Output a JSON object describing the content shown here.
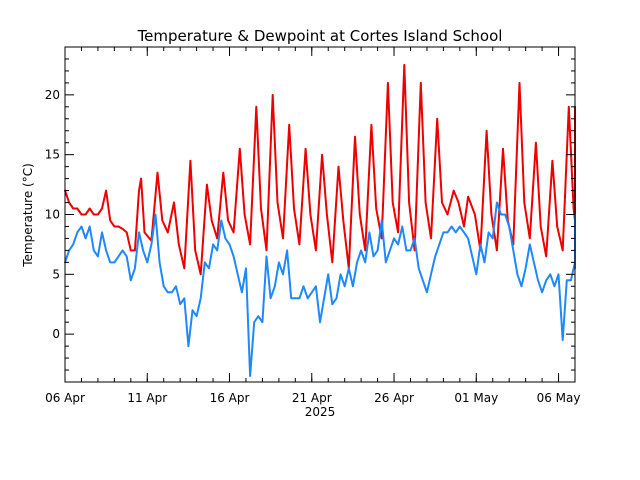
{
  "chart_data": {
    "type": "line",
    "title": "Temperature & Dewpoint at Cortes Island School",
    "ylabel": "Temperature (°C)",
    "xlabel": "2025",
    "x_range": [
      "2025-04-06",
      "2025-05-07"
    ],
    "ylim": [
      -4,
      24
    ],
    "y_ticks": [
      0,
      5,
      10,
      15,
      20
    ],
    "x_tick_labels": [
      "06 Apr",
      "11 Apr",
      "16 Apr",
      "21 Apr",
      "26 Apr",
      "01 May",
      "06 May"
    ],
    "x_tick_dates": [
      "2025-04-06",
      "2025-04-11",
      "2025-04-16",
      "2025-04-21",
      "2025-04-26",
      "2025-05-01",
      "2025-05-06"
    ],
    "grid": false,
    "series": [
      {
        "color": "#ee0000",
        "values": [
          [
            "2025-04-06 00:00",
            12.0
          ],
          [
            "2025-04-06 06:00",
            11.0
          ],
          [
            "2025-04-06 12:00",
            10.5
          ],
          [
            "2025-04-06 18:00",
            10.5
          ],
          [
            "2025-04-07 00:00",
            10.0
          ],
          [
            "2025-04-07 06:00",
            10.0
          ],
          [
            "2025-04-07 12:00",
            10.5
          ],
          [
            "2025-04-07 18:00",
            10.0
          ],
          [
            "2025-04-08 00:00",
            10.0
          ],
          [
            "2025-04-08 06:00",
            10.5
          ],
          [
            "2025-04-08 12:00",
            12.0
          ],
          [
            "2025-04-08 18:00",
            9.5
          ],
          [
            "2025-04-09 00:00",
            9.0
          ],
          [
            "2025-04-09 06:00",
            9.0
          ],
          [
            "2025-04-09 12:00",
            8.8
          ],
          [
            "2025-04-09 18:00",
            8.5
          ],
          [
            "2025-04-10 00:00",
            7.0
          ],
          [
            "2025-04-10 06:00",
            7.0
          ],
          [
            "2025-04-10 12:00",
            12.0
          ],
          [
            "2025-04-10 15:00",
            13.0
          ],
          [
            "2025-04-10 20:00",
            8.5
          ],
          [
            "2025-04-11 06:00",
            7.8
          ],
          [
            "2025-04-11 15:00",
            13.5
          ],
          [
            "2025-04-11 22:00",
            9.5
          ],
          [
            "2025-04-12 06:00",
            8.5
          ],
          [
            "2025-04-12 15:00",
            11.0
          ],
          [
            "2025-04-12 22:00",
            7.5
          ],
          [
            "2025-04-13 06:00",
            5.5
          ],
          [
            "2025-04-13 15:00",
            14.5
          ],
          [
            "2025-04-13 22:00",
            7.0
          ],
          [
            "2025-04-14 06:00",
            5.0
          ],
          [
            "2025-04-14 15:00",
            12.5
          ],
          [
            "2025-04-14 22:00",
            9.5
          ],
          [
            "2025-04-15 06:00",
            8.0
          ],
          [
            "2025-04-15 15:00",
            13.5
          ],
          [
            "2025-04-15 22:00",
            9.5
          ],
          [
            "2025-04-16 06:00",
            8.5
          ],
          [
            "2025-04-16 15:00",
            15.5
          ],
          [
            "2025-04-16 22:00",
            10.0
          ],
          [
            "2025-04-17 06:00",
            7.5
          ],
          [
            "2025-04-17 15:00",
            19.0
          ],
          [
            "2025-04-17 22:00",
            10.5
          ],
          [
            "2025-04-18 06:00",
            7.0
          ],
          [
            "2025-04-18 15:00",
            20.0
          ],
          [
            "2025-04-18 22:00",
            11.0
          ],
          [
            "2025-04-19 06:00",
            8.0
          ],
          [
            "2025-04-19 15:00",
            17.5
          ],
          [
            "2025-04-19 22:00",
            10.5
          ],
          [
            "2025-04-20 06:00",
            7.5
          ],
          [
            "2025-04-20 15:00",
            15.5
          ],
          [
            "2025-04-20 22:00",
            10.0
          ],
          [
            "2025-04-21 06:00",
            7.0
          ],
          [
            "2025-04-21 15:00",
            15.0
          ],
          [
            "2025-04-21 22:00",
            10.0
          ],
          [
            "2025-04-22 06:00",
            6.0
          ],
          [
            "2025-04-22 15:00",
            14.0
          ],
          [
            "2025-04-22 22:00",
            9.5
          ],
          [
            "2025-04-23 06:00",
            5.5
          ],
          [
            "2025-04-23 15:00",
            16.5
          ],
          [
            "2025-04-23 22:00",
            10.0
          ],
          [
            "2025-04-24 06:00",
            7.0
          ],
          [
            "2025-04-24 15:00",
            17.5
          ],
          [
            "2025-04-24 22:00",
            10.5
          ],
          [
            "2025-04-25 06:00",
            8.0
          ],
          [
            "2025-04-25 15:00",
            21.0
          ],
          [
            "2025-04-25 22:00",
            11.0
          ],
          [
            "2025-04-26 06:00",
            8.5
          ],
          [
            "2025-04-26 15:00",
            22.5
          ],
          [
            "2025-04-26 22:00",
            11.0
          ],
          [
            "2025-04-27 06:00",
            7.0
          ],
          [
            "2025-04-27 15:00",
            21.0
          ],
          [
            "2025-04-27 22:00",
            11.0
          ],
          [
            "2025-04-28 06:00",
            8.0
          ],
          [
            "2025-04-28 15:00",
            18.0
          ],
          [
            "2025-04-28 22:00",
            11.0
          ],
          [
            "2025-04-29 06:00",
            10.0
          ],
          [
            "2025-04-29 15:00",
            12.0
          ],
          [
            "2025-04-29 22:00",
            11.0
          ],
          [
            "2025-04-30 06:00",
            9.0
          ],
          [
            "2025-04-30 12:00",
            11.5
          ],
          [
            "2025-04-30 22:00",
            10.0
          ],
          [
            "2025-05-01 06:00",
            7.0
          ],
          [
            "2025-05-01 15:00",
            17.0
          ],
          [
            "2025-05-01 22:00",
            10.0
          ],
          [
            "2025-05-02 06:00",
            7.0
          ],
          [
            "2025-05-02 15:00",
            15.5
          ],
          [
            "2025-05-02 22:00",
            9.5
          ],
          [
            "2025-05-03 06:00",
            7.5
          ],
          [
            "2025-05-03 15:00",
            21.0
          ],
          [
            "2025-05-03 22:00",
            11.0
          ],
          [
            "2025-05-04 06:00",
            8.0
          ],
          [
            "2025-05-04 15:00",
            16.0
          ],
          [
            "2025-05-04 22:00",
            9.0
          ],
          [
            "2025-05-05 06:00",
            6.5
          ],
          [
            "2025-05-05 15:00",
            14.5
          ],
          [
            "2025-05-05 22:00",
            9.0
          ],
          [
            "2025-05-06 06:00",
            7.0
          ],
          [
            "2025-05-06 15:00",
            19.0
          ],
          [
            "2025-05-06 22:00",
            10.5
          ],
          [
            "2025-05-07 06:00",
            9.5
          ],
          [
            "2025-05-07 15:00",
            19.0
          ],
          [
            "2025-05-07 22:00",
            11.0
          ],
          [
            "2025-05-08 06:00",
            10.0
          ],
          [
            "2025-05-08 12:00",
            15.0
          ],
          [
            "2025-05-08 18:00",
            17.0
          ],
          [
            "2025-05-08 23:00",
            15.0
          ]
        ]
      },
      {
        "color": "#1e88ff",
        "values": [
          [
            "2025-04-06 00:00",
            6.0
          ],
          [
            "2025-04-06 06:00",
            7.0
          ],
          [
            "2025-04-06 12:00",
            7.5
          ],
          [
            "2025-04-06 18:00",
            8.5
          ],
          [
            "2025-04-07 00:00",
            9.0
          ],
          [
            "2025-04-07 06:00",
            8.0
          ],
          [
            "2025-04-07 12:00",
            9.0
          ],
          [
            "2025-04-07 18:00",
            7.0
          ],
          [
            "2025-04-08 00:00",
            6.5
          ],
          [
            "2025-04-08 06:00",
            8.5
          ],
          [
            "2025-04-08 12:00",
            7.0
          ],
          [
            "2025-04-08 18:00",
            6.0
          ],
          [
            "2025-04-09 00:00",
            6.0
          ],
          [
            "2025-04-09 06:00",
            6.5
          ],
          [
            "2025-04-09 12:00",
            7.0
          ],
          [
            "2025-04-09 18:00",
            6.5
          ],
          [
            "2025-04-10 00:00",
            4.5
          ],
          [
            "2025-04-10 06:00",
            5.5
          ],
          [
            "2025-04-10 12:00",
            8.5
          ],
          [
            "2025-04-10 18:00",
            7.0
          ],
          [
            "2025-04-11 00:00",
            6.0
          ],
          [
            "2025-04-11 06:00",
            7.5
          ],
          [
            "2025-04-11 12:00",
            10.0
          ],
          [
            "2025-04-11 18:00",
            6.0
          ],
          [
            "2025-04-12 00:00",
            4.0
          ],
          [
            "2025-04-12 06:00",
            3.5
          ],
          [
            "2025-04-12 12:00",
            3.5
          ],
          [
            "2025-04-12 18:00",
            4.0
          ],
          [
            "2025-04-13 00:00",
            2.5
          ],
          [
            "2025-04-13 06:00",
            3.0
          ],
          [
            "2025-04-13 12:00",
            -1.0
          ],
          [
            "2025-04-13 18:00",
            2.0
          ],
          [
            "2025-04-14 00:00",
            1.5
          ],
          [
            "2025-04-14 06:00",
            3.0
          ],
          [
            "2025-04-14 12:00",
            6.0
          ],
          [
            "2025-04-14 18:00",
            5.5
          ],
          [
            "2025-04-15 00:00",
            7.5
          ],
          [
            "2025-04-15 06:00",
            7.0
          ],
          [
            "2025-04-15 12:00",
            9.5
          ],
          [
            "2025-04-15 18:00",
            8.0
          ],
          [
            "2025-04-16 00:00",
            7.5
          ],
          [
            "2025-04-16 06:00",
            6.5
          ],
          [
            "2025-04-16 12:00",
            5.0
          ],
          [
            "2025-04-16 18:00",
            3.5
          ],
          [
            "2025-04-17 00:00",
            5.5
          ],
          [
            "2025-04-17 06:00",
            -3.5
          ],
          [
            "2025-04-17 12:00",
            1.0
          ],
          [
            "2025-04-17 18:00",
            1.5
          ],
          [
            "2025-04-18 00:00",
            1.0
          ],
          [
            "2025-04-18 06:00",
            6.5
          ],
          [
            "2025-04-18 12:00",
            3.0
          ],
          [
            "2025-04-18 18:00",
            4.0
          ],
          [
            "2025-04-19 00:00",
            6.0
          ],
          [
            "2025-04-19 06:00",
            5.0
          ],
          [
            "2025-04-19 12:00",
            7.0
          ],
          [
            "2025-04-19 18:00",
            3.0
          ],
          [
            "2025-04-20 00:00",
            3.0
          ],
          [
            "2025-04-20 06:00",
            3.0
          ],
          [
            "2025-04-20 12:00",
            4.0
          ],
          [
            "2025-04-20 18:00",
            3.0
          ],
          [
            "2025-04-21 00:00",
            3.5
          ],
          [
            "2025-04-21 06:00",
            4.0
          ],
          [
            "2025-04-21 12:00",
            1.0
          ],
          [
            "2025-04-21 18:00",
            3.0
          ],
          [
            "2025-04-22 00:00",
            5.0
          ],
          [
            "2025-04-22 06:00",
            2.5
          ],
          [
            "2025-04-22 12:00",
            3.0
          ],
          [
            "2025-04-22 18:00",
            5.0
          ],
          [
            "2025-04-23 00:00",
            4.0
          ],
          [
            "2025-04-23 06:00",
            5.5
          ],
          [
            "2025-04-23 12:00",
            4.0
          ],
          [
            "2025-04-23 18:00",
            6.0
          ],
          [
            "2025-04-24 00:00",
            7.0
          ],
          [
            "2025-04-24 06:00",
            6.0
          ],
          [
            "2025-04-24 12:00",
            8.5
          ],
          [
            "2025-04-24 18:00",
            6.5
          ],
          [
            "2025-04-25 00:00",
            7.0
          ],
          [
            "2025-04-25 06:00",
            9.5
          ],
          [
            "2025-04-25 12:00",
            6.0
          ],
          [
            "2025-04-25 18:00",
            7.0
          ],
          [
            "2025-04-26 00:00",
            8.0
          ],
          [
            "2025-04-26 06:00",
            7.5
          ],
          [
            "2025-04-26 12:00",
            9.0
          ],
          [
            "2025-04-26 18:00",
            7.0
          ],
          [
            "2025-04-27 00:00",
            7.0
          ],
          [
            "2025-04-27 06:00",
            8.0
          ],
          [
            "2025-04-27 12:00",
            5.5
          ],
          [
            "2025-04-27 18:00",
            4.5
          ],
          [
            "2025-04-28 00:00",
            3.5
          ],
          [
            "2025-04-28 06:00",
            5.0
          ],
          [
            "2025-04-28 12:00",
            6.5
          ],
          [
            "2025-04-28 18:00",
            7.5
          ],
          [
            "2025-04-29 00:00",
            8.5
          ],
          [
            "2025-04-29 06:00",
            8.5
          ],
          [
            "2025-04-29 12:00",
            9.0
          ],
          [
            "2025-04-29 18:00",
            8.5
          ],
          [
            "2025-04-30 00:00",
            9.0
          ],
          [
            "2025-04-30 06:00",
            8.5
          ],
          [
            "2025-04-30 12:00",
            8.0
          ],
          [
            "2025-04-30 18:00",
            6.5
          ],
          [
            "2025-05-01 00:00",
            5.0
          ],
          [
            "2025-05-01 06:00",
            7.5
          ],
          [
            "2025-05-01 12:00",
            6.0
          ],
          [
            "2025-05-01 18:00",
            8.5
          ],
          [
            "2025-05-02 00:00",
            8.0
          ],
          [
            "2025-05-02 06:00",
            11.0
          ],
          [
            "2025-05-02 12:00",
            10.0
          ],
          [
            "2025-05-02 18:00",
            10.0
          ],
          [
            "2025-05-03 00:00",
            9.0
          ],
          [
            "2025-05-03 06:00",
            7.0
          ],
          [
            "2025-05-03 12:00",
            5.0
          ],
          [
            "2025-05-03 18:00",
            4.0
          ],
          [
            "2025-05-04 00:00",
            5.5
          ],
          [
            "2025-05-04 06:00",
            7.5
          ],
          [
            "2025-05-04 12:00",
            6.0
          ],
          [
            "2025-05-04 18:00",
            4.5
          ],
          [
            "2025-05-05 00:00",
            3.5
          ],
          [
            "2025-05-05 06:00",
            4.5
          ],
          [
            "2025-05-05 12:00",
            5.0
          ],
          [
            "2025-05-05 18:00",
            4.0
          ],
          [
            "2025-05-06 00:00",
            5.0
          ],
          [
            "2025-05-06 06:00",
            -0.5
          ],
          [
            "2025-05-06 12:00",
            4.5
          ],
          [
            "2025-05-06 18:00",
            4.5
          ],
          [
            "2025-05-07 00:00",
            6.0
          ],
          [
            "2025-05-07 06:00",
            7.0
          ],
          [
            "2025-05-07 12:00",
            5.5
          ],
          [
            "2025-05-07 18:00",
            8.0
          ],
          [
            "2025-05-08 00:00",
            7.5
          ],
          [
            "2025-05-08 06:00",
            9.0
          ],
          [
            "2025-05-08 12:00",
            10.0
          ],
          [
            "2025-05-08 23:00",
            10.0
          ]
        ]
      }
    ]
  }
}
